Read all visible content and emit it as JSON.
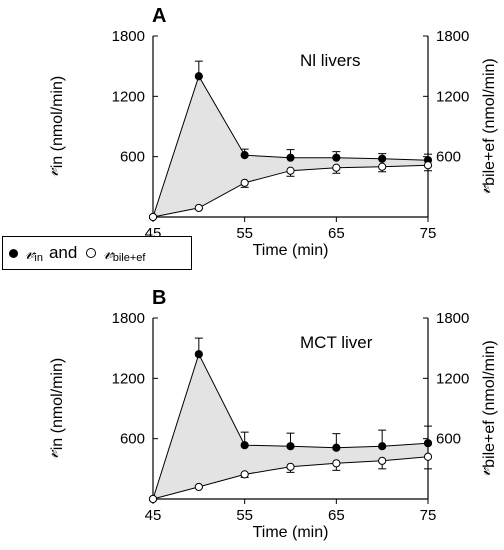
{
  "chart_data": [
    {
      "type": "line",
      "panel_label": "A",
      "annotation": "Nl livers",
      "x": [
        45,
        50,
        55,
        60,
        65,
        70,
        75
      ],
      "x_ticks": [
        45,
        55,
        65,
        75
      ],
      "xlabel": "Time (min)",
      "xlim": [
        45,
        75
      ],
      "ylim": [
        0,
        1800
      ],
      "y_ticks": [
        600,
        1200,
        1800
      ],
      "ylabel_left": "in (nmol/min)",
      "ylabel_right": "bile+ef (nmol/min)",
      "series": [
        {
          "name": "v_in",
          "marker": "filled",
          "values": [
            0,
            1400,
            615,
            590,
            590,
            580,
            565
          ],
          "errors": [
            0,
            150,
            60,
            80,
            60,
            50,
            60
          ]
        },
        {
          "name": "v_bile+ef",
          "marker": "open",
          "values": [
            0,
            90,
            340,
            460,
            490,
            500,
            515
          ],
          "errors": [
            0,
            10,
            45,
            55,
            55,
            50,
            55
          ]
        }
      ],
      "shaded_between_series": true,
      "grid": false
    },
    {
      "type": "line",
      "panel_label": "B",
      "annotation": "MCT liver",
      "x": [
        45,
        50,
        55,
        60,
        65,
        70,
        75
      ],
      "x_ticks": [
        45,
        55,
        65,
        75
      ],
      "xlabel": "Time (min)",
      "xlim": [
        45,
        75
      ],
      "ylim": [
        0,
        1800
      ],
      "y_ticks": [
        600,
        1200,
        1800
      ],
      "ylabel_left": "in (nmol/min)",
      "ylabel_right": "bile+ef (nmol/min)",
      "series": [
        {
          "name": "v_in",
          "marker": "filled",
          "values": [
            0,
            1440,
            535,
            525,
            510,
            525,
            555
          ],
          "errors": [
            0,
            160,
            130,
            130,
            140,
            160,
            170
          ]
        },
        {
          "name": "v_bile+ef",
          "marker": "open",
          "values": [
            0,
            120,
            245,
            320,
            355,
            380,
            420
          ],
          "errors": [
            0,
            10,
            30,
            55,
            70,
            80,
            120
          ]
        }
      ],
      "shaded_between_series": true,
      "grid": false
    }
  ],
  "legend": {
    "symbol_in": "𝓋",
    "sub_in": "in",
    "and_text": "and",
    "symbol_out": "𝓋",
    "sub_out": "bile+ef"
  },
  "axis_symbol": "𝓋"
}
